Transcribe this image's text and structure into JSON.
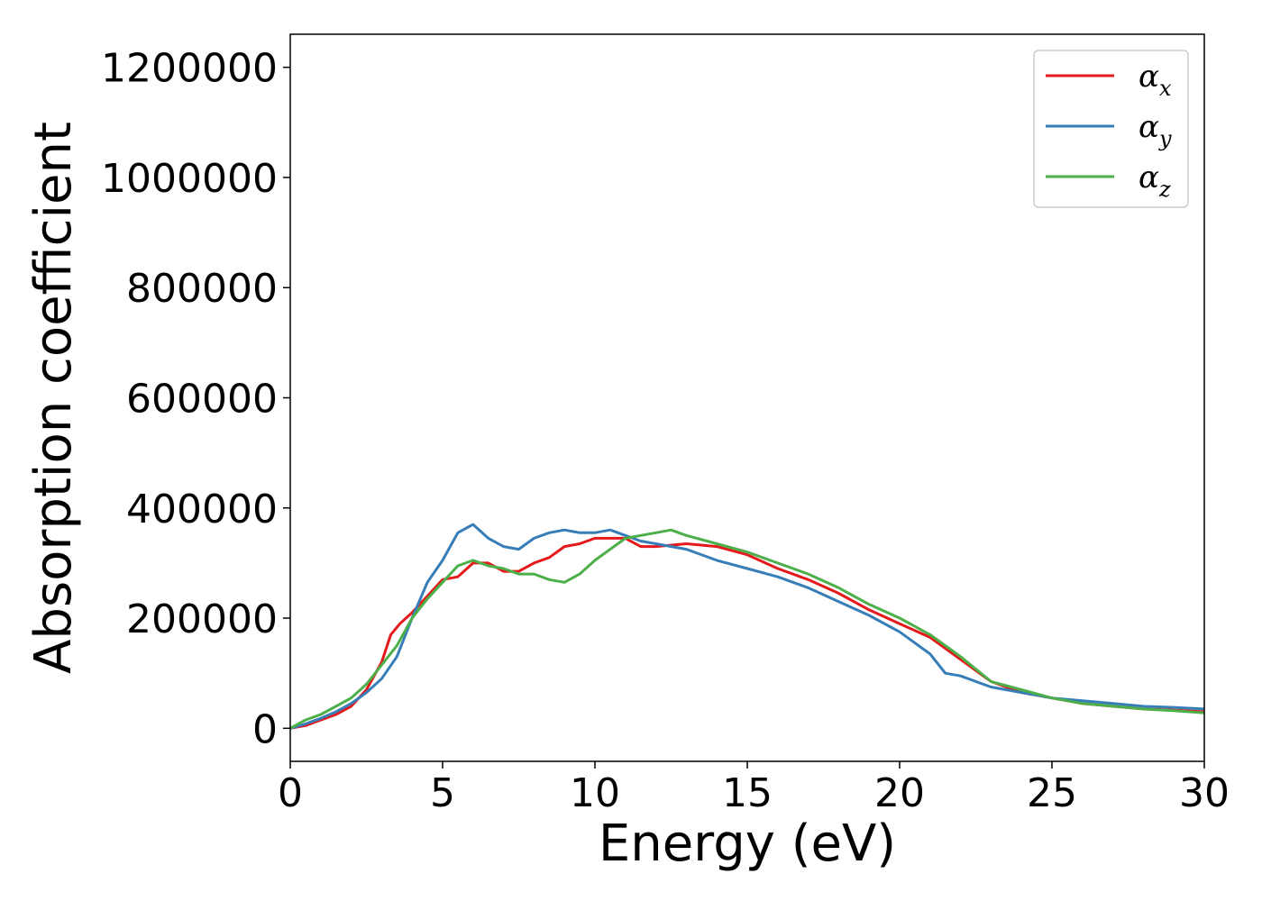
{
  "chart_data": {
    "type": "line",
    "title": "",
    "xlabel": "Energy (eV)",
    "ylabel": "Absorption coefficient",
    "xlim": [
      0,
      30
    ],
    "ylim": [
      -60000,
      1260000
    ],
    "xticks": [
      0,
      5,
      10,
      15,
      20,
      25,
      30
    ],
    "yticks": [
      0,
      200000,
      400000,
      600000,
      800000,
      1000000,
      1200000
    ],
    "grid": false,
    "legend_position": "top-right",
    "series": [
      {
        "name": "α_x",
        "label_main": "α",
        "label_sub": "x",
        "color": "#e41a1c",
        "points": [
          [
            0,
            0
          ],
          [
            0.5,
            5000
          ],
          [
            1,
            15000
          ],
          [
            1.5,
            25000
          ],
          [
            2,
            40000
          ],
          [
            2.5,
            70000
          ],
          [
            3,
            120000
          ],
          [
            3.3,
            170000
          ],
          [
            3.6,
            190000
          ],
          [
            4,
            210000
          ],
          [
            4.5,
            240000
          ],
          [
            5,
            270000
          ],
          [
            5.5,
            275000
          ],
          [
            6,
            300000
          ],
          [
            6.5,
            300000
          ],
          [
            7,
            285000
          ],
          [
            7.5,
            285000
          ],
          [
            8,
            300000
          ],
          [
            8.5,
            310000
          ],
          [
            9,
            330000
          ],
          [
            9.5,
            335000
          ],
          [
            10,
            345000
          ],
          [
            11,
            345000
          ],
          [
            11.5,
            330000
          ],
          [
            12,
            330000
          ],
          [
            13,
            335000
          ],
          [
            14,
            330000
          ],
          [
            15,
            315000
          ],
          [
            16,
            290000
          ],
          [
            17,
            270000
          ],
          [
            18,
            245000
          ],
          [
            19,
            215000
          ],
          [
            20,
            190000
          ],
          [
            21,
            165000
          ],
          [
            22,
            125000
          ],
          [
            23,
            85000
          ],
          [
            24,
            65000
          ],
          [
            25,
            55000
          ],
          [
            26,
            45000
          ],
          [
            27,
            40000
          ],
          [
            28,
            35000
          ],
          [
            29,
            33000
          ],
          [
            30,
            30000
          ]
        ]
      },
      {
        "name": "α_y",
        "label_main": "α",
        "label_sub": "y",
        "color": "#377eb8",
        "points": [
          [
            0,
            0
          ],
          [
            0.5,
            8000
          ],
          [
            1,
            18000
          ],
          [
            1.5,
            30000
          ],
          [
            2,
            45000
          ],
          [
            2.5,
            65000
          ],
          [
            3,
            90000
          ],
          [
            3.5,
            130000
          ],
          [
            4,
            200000
          ],
          [
            4.5,
            265000
          ],
          [
            5,
            305000
          ],
          [
            5.5,
            355000
          ],
          [
            6,
            370000
          ],
          [
            6.5,
            345000
          ],
          [
            7,
            330000
          ],
          [
            7.5,
            325000
          ],
          [
            8,
            345000
          ],
          [
            8.5,
            355000
          ],
          [
            9,
            360000
          ],
          [
            9.5,
            355000
          ],
          [
            10,
            355000
          ],
          [
            10.5,
            360000
          ],
          [
            11,
            350000
          ],
          [
            11.5,
            340000
          ],
          [
            12,
            335000
          ],
          [
            13,
            325000
          ],
          [
            14,
            305000
          ],
          [
            15,
            290000
          ],
          [
            16,
            275000
          ],
          [
            17,
            255000
          ],
          [
            18,
            230000
          ],
          [
            19,
            205000
          ],
          [
            20,
            175000
          ],
          [
            21,
            135000
          ],
          [
            21.5,
            100000
          ],
          [
            22,
            95000
          ],
          [
            23,
            75000
          ],
          [
            24,
            65000
          ],
          [
            25,
            55000
          ],
          [
            26,
            50000
          ],
          [
            27,
            45000
          ],
          [
            28,
            40000
          ],
          [
            29,
            38000
          ],
          [
            30,
            35000
          ]
        ]
      },
      {
        "name": "α_z",
        "label_main": "α",
        "label_sub": "z",
        "color": "#4daf4a",
        "points": [
          [
            0,
            0
          ],
          [
            0.5,
            15000
          ],
          [
            1,
            25000
          ],
          [
            1.5,
            40000
          ],
          [
            2,
            55000
          ],
          [
            2.5,
            80000
          ],
          [
            3,
            115000
          ],
          [
            3.5,
            150000
          ],
          [
            4,
            200000
          ],
          [
            4.5,
            235000
          ],
          [
            5,
            265000
          ],
          [
            5.5,
            295000
          ],
          [
            6,
            305000
          ],
          [
            6.5,
            295000
          ],
          [
            7,
            290000
          ],
          [
            7.5,
            280000
          ],
          [
            8,
            280000
          ],
          [
            8.5,
            270000
          ],
          [
            9,
            265000
          ],
          [
            9.5,
            280000
          ],
          [
            10,
            305000
          ],
          [
            10.5,
            325000
          ],
          [
            11,
            345000
          ],
          [
            11.5,
            350000
          ],
          [
            12,
            355000
          ],
          [
            12.5,
            360000
          ],
          [
            13,
            350000
          ],
          [
            14,
            335000
          ],
          [
            15,
            320000
          ],
          [
            16,
            300000
          ],
          [
            17,
            280000
          ],
          [
            18,
            255000
          ],
          [
            19,
            225000
          ],
          [
            20,
            200000
          ],
          [
            21,
            170000
          ],
          [
            22,
            130000
          ],
          [
            23,
            85000
          ],
          [
            24,
            70000
          ],
          [
            25,
            55000
          ],
          [
            26,
            45000
          ],
          [
            27,
            40000
          ],
          [
            28,
            35000
          ],
          [
            29,
            32000
          ],
          [
            30,
            28000
          ]
        ]
      }
    ]
  }
}
